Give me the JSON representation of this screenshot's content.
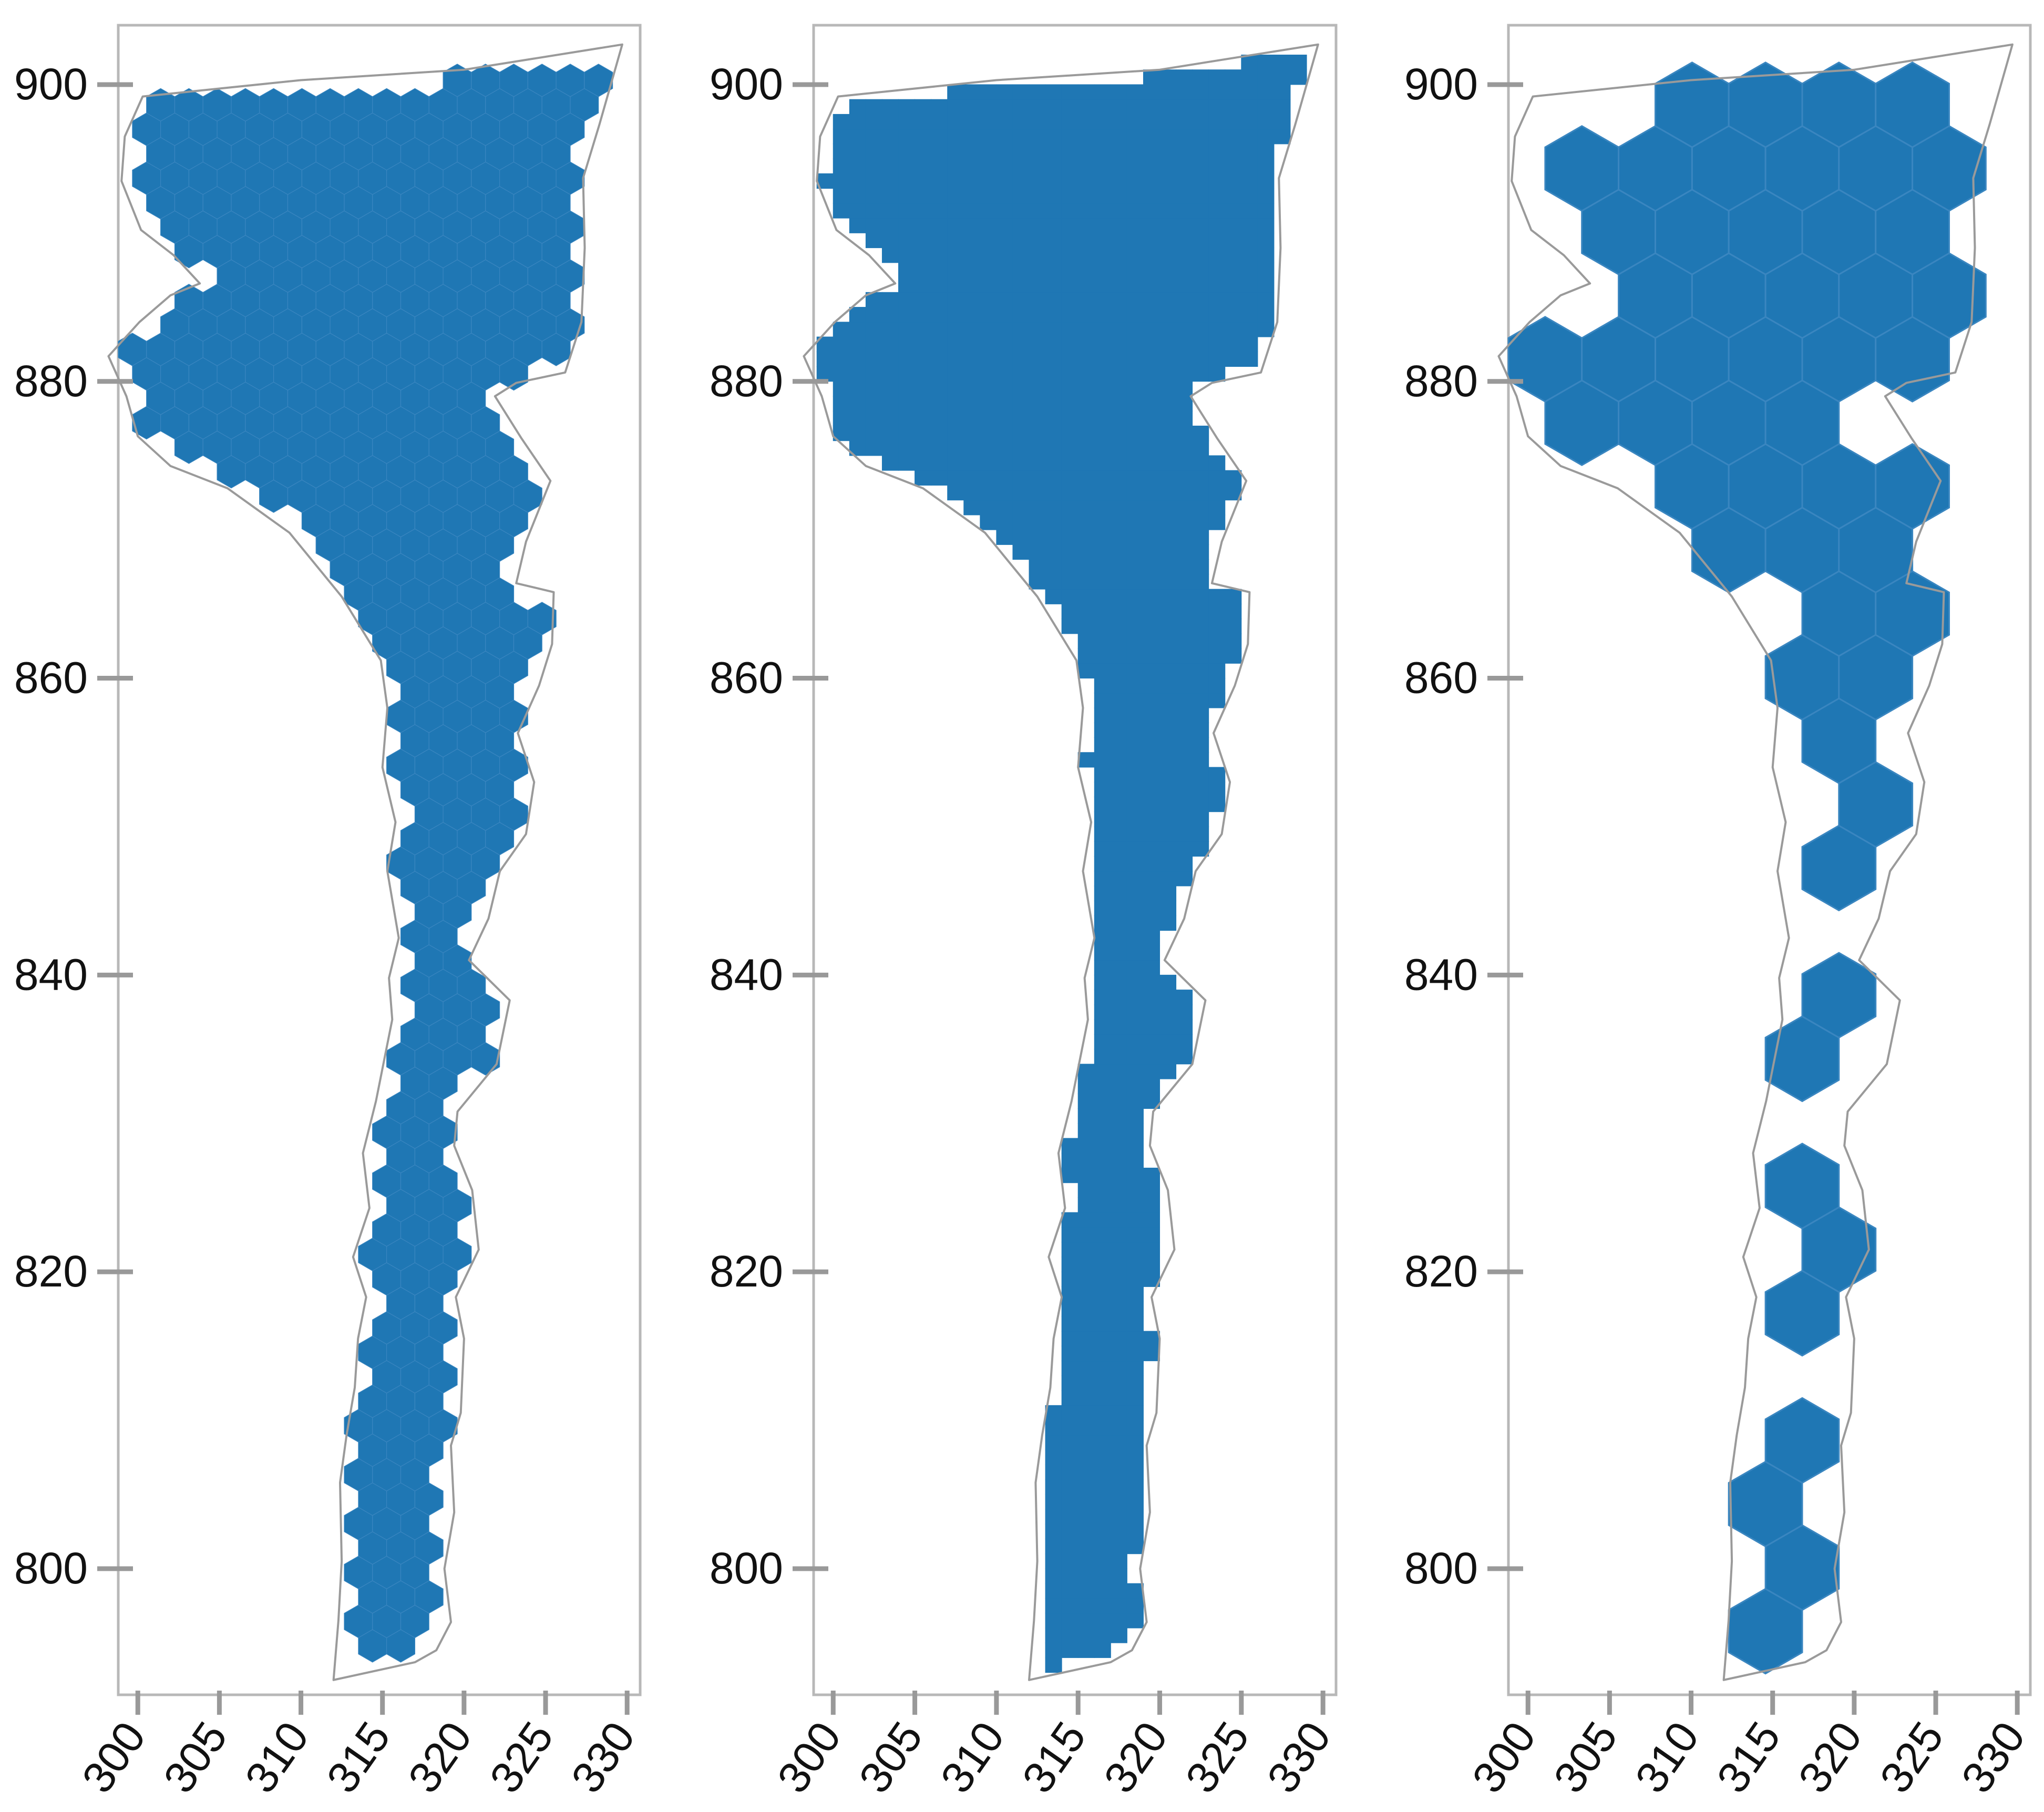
{
  "colors": {
    "fill": "#1f77b4",
    "hex_edge": "#3a86c0",
    "outline": "#9a9a9a",
    "frame": "#b8b8b8",
    "tick": "#999999",
    "text": "#111111"
  },
  "chart_data": [
    {
      "type": "scatter",
      "variant": "fine-hexagon-fill",
      "hex_size": 1.0,
      "xticks": [
        300,
        305,
        310,
        315,
        320,
        325,
        330
      ],
      "yticks": [
        800,
        820,
        840,
        860,
        880,
        900
      ],
      "xlim": [
        298.8,
        330.8
      ],
      "ylim": [
        791.5,
        904
      ],
      "grid": false
    },
    {
      "type": "heatmap",
      "variant": "square-grid-fill",
      "cell_size": 1.0,
      "xticks": [
        300,
        305,
        310,
        315,
        320,
        325,
        330
      ],
      "yticks": [
        800,
        820,
        840,
        860,
        880,
        900
      ],
      "xlim": [
        298.8,
        330.8
      ],
      "ylim": [
        791.5,
        904
      ],
      "grid": false
    },
    {
      "type": "scatter",
      "variant": "coarse-hexagon-fill",
      "hex_size": 2.6,
      "xticks": [
        300,
        305,
        310,
        315,
        320,
        325,
        330
      ],
      "yticks": [
        800,
        820,
        840,
        860,
        880,
        900
      ],
      "xlim": [
        298.8,
        330.8
      ],
      "ylim": [
        791.5,
        904
      ],
      "grid": false
    }
  ],
  "outline_polygon": [
    [
      300.3,
      899.2
    ],
    [
      310.0,
      900.3
    ],
    [
      320.0,
      901.0
    ],
    [
      329.7,
      902.7
    ],
    [
      328.3,
      897.3
    ],
    [
      327.3,
      893.7
    ],
    [
      327.4,
      889.0
    ],
    [
      327.2,
      884.0
    ],
    [
      326.2,
      880.6
    ],
    [
      323.2,
      879.9
    ],
    [
      321.9,
      879.0
    ],
    [
      323.5,
      876.2
    ],
    [
      325.3,
      873.3
    ],
    [
      323.8,
      869.2
    ],
    [
      323.2,
      866.4
    ],
    [
      325.5,
      865.8
    ],
    [
      325.4,
      862.3
    ],
    [
      324.6,
      859.5
    ],
    [
      323.3,
      856.3
    ],
    [
      324.3,
      853.0
    ],
    [
      323.8,
      849.5
    ],
    [
      322.2,
      847.0
    ],
    [
      321.5,
      843.8
    ],
    [
      320.3,
      841.0
    ],
    [
      322.8,
      838.3
    ],
    [
      322.0,
      834.0
    ],
    [
      319.6,
      830.8
    ],
    [
      319.4,
      828.5
    ],
    [
      320.5,
      825.5
    ],
    [
      320.9,
      821.5
    ],
    [
      319.5,
      818.3
    ],
    [
      320.0,
      815.5
    ],
    [
      319.8,
      810.5
    ],
    [
      319.2,
      808.3
    ],
    [
      319.4,
      803.8
    ],
    [
      318.8,
      800.0
    ],
    [
      319.2,
      796.4
    ],
    [
      318.3,
      794.5
    ],
    [
      317.0,
      793.7
    ],
    [
      312.0,
      792.5
    ],
    [
      312.3,
      796.5
    ],
    [
      312.5,
      800.5
    ],
    [
      312.4,
      805.8
    ],
    [
      312.8,
      809.0
    ],
    [
      313.3,
      812.2
    ],
    [
      313.5,
      815.5
    ],
    [
      314.0,
      818.3
    ],
    [
      313.2,
      821.0
    ],
    [
      314.2,
      824.3
    ],
    [
      313.8,
      828.0
    ],
    [
      314.6,
      831.5
    ],
    [
      315.6,
      837.0
    ],
    [
      315.4,
      839.8
    ],
    [
      316.0,
      842.5
    ],
    [
      315.3,
      847.0
    ],
    [
      315.8,
      850.3
    ],
    [
      315.0,
      854.0
    ],
    [
      315.3,
      858.0
    ],
    [
      314.9,
      861.2
    ],
    [
      312.5,
      865.5
    ],
    [
      309.3,
      869.8
    ],
    [
      305.5,
      872.8
    ],
    [
      302.0,
      874.3
    ],
    [
      300.0,
      876.3
    ],
    [
      299.3,
      879.0
    ],
    [
      298.2,
      881.7
    ],
    [
      300.1,
      884.0
    ],
    [
      302.0,
      885.8
    ],
    [
      303.8,
      886.6
    ],
    [
      302.2,
      888.5
    ],
    [
      300.2,
      890.2
    ],
    [
      299.0,
      893.5
    ],
    [
      299.2,
      896.5
    ]
  ]
}
